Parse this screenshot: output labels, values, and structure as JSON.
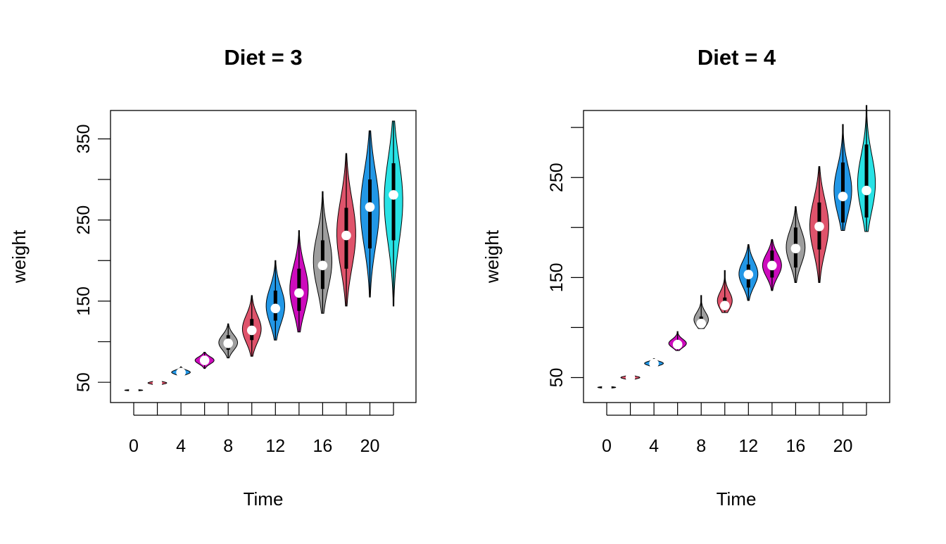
{
  "chart_data": [
    {
      "type": "violin",
      "title": "Diet = 3",
      "xlabel": "Time",
      "ylabel": "weight",
      "ylim": [
        25,
        385
      ],
      "x_tick_labels": [
        "0",
        "4",
        "8",
        "12",
        "16",
        "20"
      ],
      "x_tick_values": [
        0,
        4,
        8,
        12,
        16,
        20
      ],
      "y_tick_values": [
        50,
        150,
        250,
        350
      ],
      "y_minor_tick_values": [
        100,
        200,
        300
      ],
      "groups": [
        {
          "time": 0,
          "min": 39,
          "max": 42,
          "q1": 40,
          "q3": 41,
          "median": 40,
          "color": "#000000"
        },
        {
          "time": 2,
          "min": 46,
          "max": 53,
          "q1": 48,
          "q3": 51,
          "median": 49,
          "color": "#DF536B"
        },
        {
          "time": 4,
          "min": 57,
          "max": 69,
          "q1": 60,
          "q3": 64,
          "median": 62,
          "color": "#2297E6"
        },
        {
          "time": 6,
          "min": 67,
          "max": 87,
          "q1": 73,
          "q3": 82,
          "median": 77,
          "color": "#CD0BBC"
        },
        {
          "time": 8,
          "min": 80,
          "max": 122,
          "q1": 90,
          "q3": 108,
          "median": 98,
          "color": "#9E9E9E"
        },
        {
          "time": 10,
          "min": 82,
          "max": 157,
          "q1": 102,
          "q3": 128,
          "median": 114,
          "color": "#DF536B"
        },
        {
          "time": 12,
          "min": 102,
          "max": 200,
          "q1": 126,
          "q3": 163,
          "median": 141,
          "color": "#2297E6"
        },
        {
          "time": 14,
          "min": 112,
          "max": 237,
          "q1": 138,
          "q3": 190,
          "median": 160,
          "color": "#CD0BBC"
        },
        {
          "time": 16,
          "min": 135,
          "max": 285,
          "q1": 165,
          "q3": 225,
          "median": 194,
          "color": "#9E9E9E"
        },
        {
          "time": 18,
          "min": 144,
          "max": 332,
          "q1": 190,
          "q3": 265,
          "median": 231,
          "color": "#DF536B"
        },
        {
          "time": 20,
          "min": 155,
          "max": 360,
          "q1": 215,
          "q3": 300,
          "median": 266,
          "color": "#2297E6"
        },
        {
          "time": 21,
          "min": 144,
          "max": 372,
          "q1": 225,
          "q3": 320,
          "median": 281,
          "color": "#28E2E5"
        }
      ]
    },
    {
      "type": "violin",
      "title": "Diet = 4",
      "xlabel": "Time",
      "ylabel": "weight",
      "ylim": [
        25,
        317
      ],
      "x_tick_labels": [
        "0",
        "4",
        "8",
        "12",
        "16",
        "20"
      ],
      "x_tick_values": [
        0,
        4,
        8,
        12,
        16,
        20
      ],
      "y_tick_values": [
        50,
        150,
        250
      ],
      "y_minor_tick_values": [
        100,
        200,
        300
      ],
      "groups": [
        {
          "time": 0,
          "min": 39,
          "max": 42,
          "q1": 40,
          "q3": 41,
          "median": 40,
          "color": "#000000"
        },
        {
          "time": 2,
          "min": 47,
          "max": 53,
          "q1": 49,
          "q3": 51,
          "median": 50,
          "color": "#DF536B"
        },
        {
          "time": 4,
          "min": 60,
          "max": 69,
          "q1": 62,
          "q3": 66,
          "median": 64,
          "color": "#2297E6"
        },
        {
          "time": 6,
          "min": 77,
          "max": 96,
          "q1": 79,
          "q3": 86,
          "median": 83,
          "color": "#CD0BBC"
        },
        {
          "time": 8,
          "min": 99,
          "max": 132,
          "q1": 101,
          "q3": 111,
          "median": 104,
          "color": "#9E9E9E"
        },
        {
          "time": 10,
          "min": 115,
          "max": 157,
          "q1": 117,
          "q3": 130,
          "median": 122,
          "color": "#DF536B"
        },
        {
          "time": 12,
          "min": 127,
          "max": 183,
          "q1": 140,
          "q3": 163,
          "median": 153,
          "color": "#2297E6"
        },
        {
          "time": 14,
          "min": 137,
          "max": 188,
          "q1": 150,
          "q3": 177,
          "median": 162,
          "color": "#CD0BBC"
        },
        {
          "time": 16,
          "min": 145,
          "max": 221,
          "q1": 160,
          "q3": 200,
          "median": 179,
          "color": "#9E9E9E"
        },
        {
          "time": 18,
          "min": 145,
          "max": 261,
          "q1": 178,
          "q3": 225,
          "median": 201,
          "color": "#DF536B"
        },
        {
          "time": 20,
          "min": 197,
          "max": 303,
          "q1": 205,
          "q3": 265,
          "median": 231,
          "color": "#2297E6"
        },
        {
          "time": 21,
          "min": 196,
          "max": 322,
          "q1": 210,
          "q3": 283,
          "median": 237,
          "color": "#28E2E5"
        }
      ]
    }
  ]
}
